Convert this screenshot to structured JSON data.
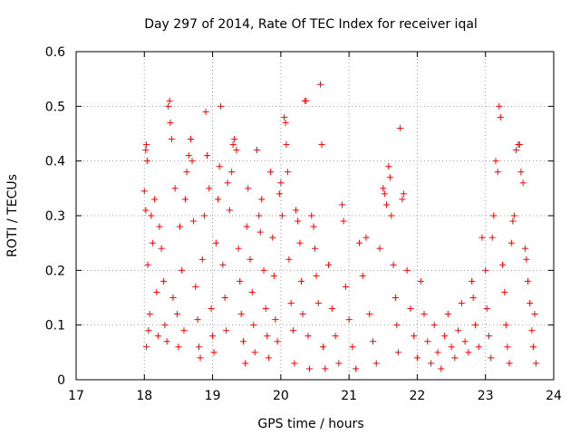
{
  "chart_data": {
    "type": "scatter",
    "title": "Day 297 of 2014, Rate Of TEC Index for receiver iqal",
    "xlabel": "GPS time / hours",
    "ylabel": "ROTI / TECUs",
    "xlim": [
      17,
      24
    ],
    "ylim": [
      0,
      0.6
    ],
    "xticks": [
      17,
      18,
      19,
      20,
      21,
      22,
      23,
      24
    ],
    "xtick_labels": [
      "17",
      "18",
      "19",
      "20",
      "21",
      "22",
      "23",
      "24"
    ],
    "yticks": [
      0,
      0.1,
      0.2,
      0.3,
      0.4,
      0.5,
      0.6
    ],
    "ytick_labels": [
      "0",
      "0.1",
      "0.2",
      "0.3",
      "0.4",
      "0.5",
      "0.6"
    ],
    "grid": true,
    "marker": "+",
    "color": "#ff0000",
    "series": [
      {
        "name": "ROTI",
        "points": [
          [
            18.0,
            0.345
          ],
          [
            18.02,
            0.42
          ],
          [
            18.03,
            0.43
          ],
          [
            18.04,
            0.4
          ],
          [
            18.02,
            0.31
          ],
          [
            18.05,
            0.21
          ],
          [
            18.03,
            0.06
          ],
          [
            18.06,
            0.09
          ],
          [
            18.08,
            0.12
          ],
          [
            18.1,
            0.3
          ],
          [
            18.12,
            0.25
          ],
          [
            18.15,
            0.33
          ],
          [
            18.18,
            0.16
          ],
          [
            18.2,
            0.08
          ],
          [
            18.22,
            0.28
          ],
          [
            18.25,
            0.24
          ],
          [
            18.28,
            0.18
          ],
          [
            18.3,
            0.1
          ],
          [
            18.33,
            0.07
          ],
          [
            18.35,
            0.5
          ],
          [
            18.37,
            0.51
          ],
          [
            18.38,
            0.47
          ],
          [
            18.4,
            0.44
          ],
          [
            18.42,
            0.15
          ],
          [
            18.45,
            0.35
          ],
          [
            18.48,
            0.12
          ],
          [
            18.5,
            0.06
          ],
          [
            18.52,
            0.28
          ],
          [
            18.55,
            0.2
          ],
          [
            18.58,
            0.09
          ],
          [
            18.6,
            0.33
          ],
          [
            18.62,
            0.38
          ],
          [
            18.65,
            0.41
          ],
          [
            18.68,
            0.44
          ],
          [
            18.7,
            0.4
          ],
          [
            18.72,
            0.29
          ],
          [
            18.75,
            0.17
          ],
          [
            18.78,
            0.11
          ],
          [
            18.8,
            0.06
          ],
          [
            18.82,
            0.04
          ],
          [
            18.85,
            0.22
          ],
          [
            18.88,
            0.3
          ],
          [
            18.9,
            0.49
          ],
          [
            18.92,
            0.41
          ],
          [
            18.95,
            0.35
          ],
          [
            18.98,
            0.13
          ],
          [
            19.0,
            0.08
          ],
          [
            19.02,
            0.05
          ],
          [
            19.05,
            0.25
          ],
          [
            19.08,
            0.33
          ],
          [
            19.1,
            0.39
          ],
          [
            19.12,
            0.5
          ],
          [
            19.15,
            0.21
          ],
          [
            19.18,
            0.15
          ],
          [
            19.2,
            0.09
          ],
          [
            19.22,
            0.36
          ],
          [
            19.25,
            0.31
          ],
          [
            19.28,
            0.38
          ],
          [
            19.3,
            0.43
          ],
          [
            19.32,
            0.44
          ],
          [
            19.35,
            0.42
          ],
          [
            19.38,
            0.24
          ],
          [
            19.4,
            0.18
          ],
          [
            19.42,
            0.12
          ],
          [
            19.45,
            0.07
          ],
          [
            19.48,
            0.03
          ],
          [
            19.5,
            0.28
          ],
          [
            19.52,
            0.35
          ],
          [
            19.55,
            0.22
          ],
          [
            19.58,
            0.16
          ],
          [
            19.6,
            0.1
          ],
          [
            19.62,
            0.05
          ],
          [
            19.65,
            0.42
          ],
          [
            19.68,
            0.3
          ],
          [
            19.7,
            0.27
          ],
          [
            19.72,
            0.33
          ],
          [
            19.75,
            0.2
          ],
          [
            19.78,
            0.13
          ],
          [
            19.8,
            0.08
          ],
          [
            19.82,
            0.04
          ],
          [
            19.85,
            0.38
          ],
          [
            19.88,
            0.26
          ],
          [
            19.9,
            0.19
          ],
          [
            19.92,
            0.11
          ],
          [
            19.95,
            0.07
          ],
          [
            19.98,
            0.34
          ],
          [
            20.0,
            0.36
          ],
          [
            20.02,
            0.3
          ],
          [
            20.05,
            0.48
          ],
          [
            20.07,
            0.47
          ],
          [
            20.08,
            0.43
          ],
          [
            20.1,
            0.38
          ],
          [
            20.12,
            0.22
          ],
          [
            20.15,
            0.14
          ],
          [
            20.18,
            0.09
          ],
          [
            20.2,
            0.03
          ],
          [
            20.22,
            0.31
          ],
          [
            20.25,
            0.29
          ],
          [
            20.28,
            0.25
          ],
          [
            20.3,
            0.18
          ],
          [
            20.32,
            0.12
          ],
          [
            20.35,
            0.51
          ],
          [
            20.37,
            0.51
          ],
          [
            20.4,
            0.08
          ],
          [
            20.42,
            0.02
          ],
          [
            20.45,
            0.3
          ],
          [
            20.48,
            0.28
          ],
          [
            20.5,
            0.24
          ],
          [
            20.52,
            0.19
          ],
          [
            20.55,
            0.14
          ],
          [
            20.58,
            0.54
          ],
          [
            20.6,
            0.43
          ],
          [
            20.62,
            0.06
          ],
          [
            20.65,
            0.02
          ],
          [
            20.7,
            0.21
          ],
          [
            20.75,
            0.13
          ],
          [
            20.8,
            0.08
          ],
          [
            20.85,
            0.03
          ],
          [
            20.9,
            0.32
          ],
          [
            20.92,
            0.29
          ],
          [
            20.95,
            0.17
          ],
          [
            21.0,
            0.11
          ],
          [
            21.05,
            0.06
          ],
          [
            21.1,
            0.02
          ],
          [
            21.15,
            0.25
          ],
          [
            21.2,
            0.19
          ],
          [
            21.25,
            0.26
          ],
          [
            21.3,
            0.12
          ],
          [
            21.35,
            0.07
          ],
          [
            21.4,
            0.03
          ],
          [
            21.45,
            0.24
          ],
          [
            21.5,
            0.35
          ],
          [
            21.52,
            0.34
          ],
          [
            21.55,
            0.32
          ],
          [
            21.58,
            0.39
          ],
          [
            21.6,
            0.37
          ],
          [
            21.62,
            0.3
          ],
          [
            21.65,
            0.21
          ],
          [
            21.68,
            0.15
          ],
          [
            21.7,
            0.1
          ],
          [
            21.72,
            0.05
          ],
          [
            21.75,
            0.46
          ],
          [
            21.78,
            0.33
          ],
          [
            21.8,
            0.34
          ],
          [
            21.85,
            0.2
          ],
          [
            21.9,
            0.13
          ],
          [
            21.95,
            0.08
          ],
          [
            22.0,
            0.04
          ],
          [
            22.05,
            0.18
          ],
          [
            22.1,
            0.12
          ],
          [
            22.15,
            0.07
          ],
          [
            22.2,
            0.03
          ],
          [
            22.25,
            0.1
          ],
          [
            22.3,
            0.05
          ],
          [
            22.35,
            0.02
          ],
          [
            22.4,
            0.08
          ],
          [
            22.45,
            0.12
          ],
          [
            22.5,
            0.06
          ],
          [
            22.55,
            0.04
          ],
          [
            22.6,
            0.09
          ],
          [
            22.65,
            0.14
          ],
          [
            22.7,
            0.07
          ],
          [
            22.75,
            0.05
          ],
          [
            22.8,
            0.18
          ],
          [
            22.82,
            0.15
          ],
          [
            22.85,
            0.1
          ],
          [
            22.9,
            0.06
          ],
          [
            22.95,
            0.26
          ],
          [
            23.0,
            0.2
          ],
          [
            23.02,
            0.13
          ],
          [
            23.05,
            0.08
          ],
          [
            23.08,
            0.04
          ],
          [
            23.1,
            0.26
          ],
          [
            23.12,
            0.3
          ],
          [
            23.15,
            0.4
          ],
          [
            23.18,
            0.38
          ],
          [
            23.2,
            0.5
          ],
          [
            23.22,
            0.48
          ],
          [
            23.25,
            0.21
          ],
          [
            23.28,
            0.16
          ],
          [
            23.3,
            0.1
          ],
          [
            23.32,
            0.06
          ],
          [
            23.35,
            0.03
          ],
          [
            23.38,
            0.25
          ],
          [
            23.4,
            0.29
          ],
          [
            23.42,
            0.3
          ],
          [
            23.45,
            0.42
          ],
          [
            23.48,
            0.43
          ],
          [
            23.5,
            0.43
          ],
          [
            23.52,
            0.38
          ],
          [
            23.55,
            0.36
          ],
          [
            23.58,
            0.24
          ],
          [
            23.6,
            0.22
          ],
          [
            23.62,
            0.18
          ],
          [
            23.65,
            0.14
          ],
          [
            23.68,
            0.09
          ],
          [
            23.7,
            0.06
          ],
          [
            23.72,
            0.12
          ],
          [
            23.74,
            0.03
          ]
        ]
      }
    ]
  }
}
